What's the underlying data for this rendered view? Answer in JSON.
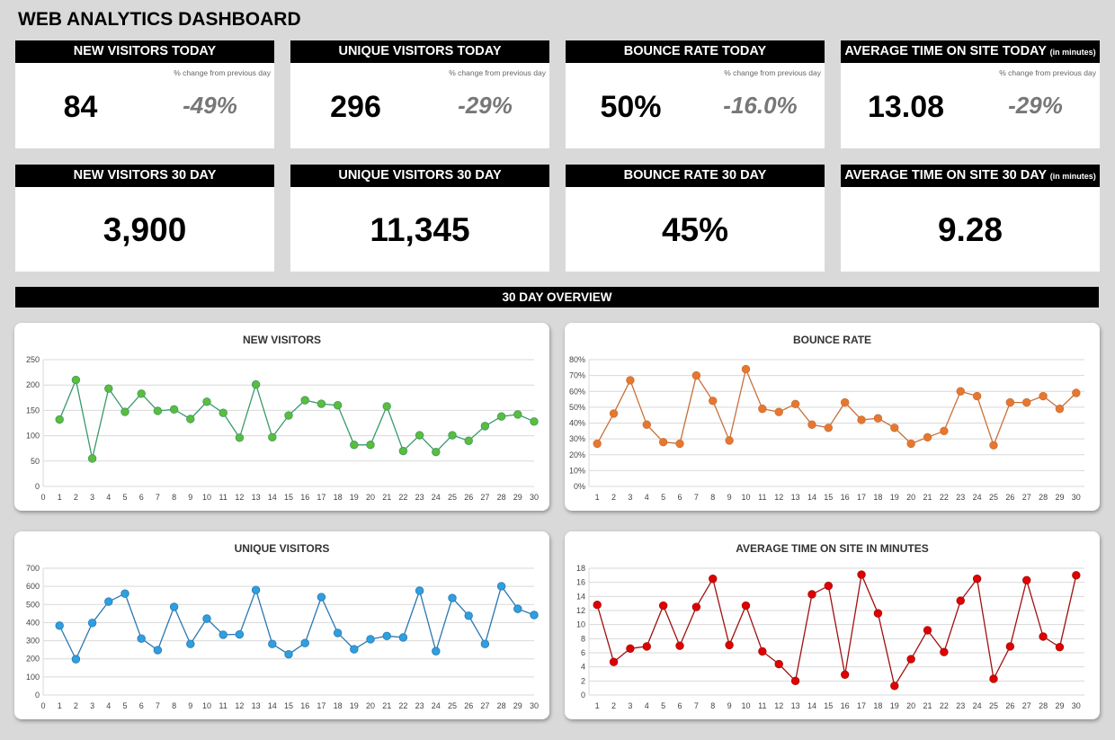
{
  "title": "WEB ANALYTICS DASHBOARD",
  "today": [
    {
      "label": "NEW VISITORS TODAY",
      "unit": "",
      "value": "84",
      "change": "-49%",
      "change_caption": "% change from previous day"
    },
    {
      "label": "UNIQUE VISITORS TODAY",
      "unit": "",
      "value": "296",
      "change": "-29%",
      "change_caption": "% change from previous day"
    },
    {
      "label": "BOUNCE RATE TODAY",
      "unit": "",
      "value": "50%",
      "change": "-16.0%",
      "change_caption": "% change from previous day"
    },
    {
      "label": "AVERAGE TIME ON SITE TODAY",
      "unit": "(in minutes)",
      "value": "13.08",
      "change": "-29%",
      "change_caption": "% change from previous day"
    }
  ],
  "thirty": [
    {
      "label": "NEW VISITORS 30 DAY",
      "unit": "",
      "value": "3,900"
    },
    {
      "label": "UNIQUE VISITORS 30 DAY",
      "unit": "",
      "value": "11,345"
    },
    {
      "label": "BOUNCE RATE 30 DAY",
      "unit": "",
      "value": "45%"
    },
    {
      "label": "AVERAGE TIME ON SITE 30 DAY",
      "unit": "(in minutes)",
      "value": "9.28"
    }
  ],
  "overview_title": "30 DAY OVERVIEW",
  "chart_data": [
    {
      "type": "line",
      "title": "NEW VISITORS",
      "color": "#5bbd3a",
      "line_color": "#3a9a6a",
      "xmode": "value",
      "xlim": [
        0,
        30
      ],
      "ylim": [
        0,
        250
      ],
      "ystep": 50,
      "yformat": "num",
      "x": [
        1,
        2,
        3,
        4,
        5,
        6,
        7,
        8,
        9,
        10,
        11,
        12,
        13,
        14,
        15,
        16,
        17,
        18,
        19,
        20,
        21,
        22,
        23,
        24,
        25,
        26,
        27,
        28,
        29,
        30
      ],
      "values": [
        132,
        210,
        55,
        193,
        147,
        183,
        149,
        152,
        133,
        167,
        145,
        96,
        201,
        97,
        140,
        170,
        163,
        160,
        82,
        82,
        158,
        70,
        101,
        68,
        101,
        90,
        119,
        138,
        142,
        128
      ]
    },
    {
      "type": "line",
      "title": "BOUNCE RATE",
      "color": "#e8772e",
      "line_color": "#c8703a",
      "xmode": "category",
      "xlim": [
        1,
        30
      ],
      "ylim": [
        0,
        80
      ],
      "ystep": 10,
      "yformat": "pct",
      "x": [
        1,
        2,
        3,
        4,
        5,
        6,
        7,
        8,
        9,
        10,
        11,
        12,
        13,
        14,
        15,
        16,
        17,
        18,
        19,
        20,
        21,
        22,
        23,
        24,
        25,
        26,
        27,
        28,
        29,
        30
      ],
      "values": [
        27,
        46,
        67,
        39,
        28,
        27,
        70,
        54,
        29,
        74,
        49,
        47,
        52,
        39,
        37,
        53,
        42,
        43,
        37,
        27,
        31,
        35,
        60,
        57,
        26,
        53,
        53,
        57,
        49,
        59
      ]
    },
    {
      "type": "line",
      "title": "UNIQUE VISITORS",
      "color": "#2e9fe0",
      "line_color": "#2a78b0",
      "xmode": "value",
      "xlim": [
        0,
        30
      ],
      "ylim": [
        0,
        700
      ],
      "ystep": 100,
      "yformat": "num",
      "x": [
        1,
        2,
        3,
        4,
        5,
        6,
        7,
        8,
        9,
        10,
        11,
        12,
        13,
        14,
        15,
        16,
        17,
        18,
        19,
        20,
        21,
        22,
        23,
        24,
        25,
        26,
        27,
        28,
        29,
        30
      ],
      "values": [
        383,
        198,
        398,
        516,
        560,
        312,
        248,
        487,
        282,
        422,
        333,
        335,
        580,
        282,
        225,
        287,
        541,
        343,
        253,
        308,
        326,
        318,
        576,
        242,
        536,
        438,
        282,
        601,
        476,
        442
      ]
    },
    {
      "type": "line",
      "title": "AVERAGE TIME ON SITE IN MINUTES",
      "color": "#e00000",
      "line_color": "#a01010",
      "xmode": "category",
      "xlim": [
        1,
        30
      ],
      "ylim": [
        0,
        18
      ],
      "ystep": 2,
      "yformat": "num",
      "x": [
        1,
        2,
        3,
        4,
        5,
        6,
        7,
        8,
        9,
        10,
        11,
        12,
        13,
        14,
        15,
        16,
        17,
        18,
        19,
        20,
        21,
        22,
        23,
        24,
        25,
        26,
        27,
        28,
        29,
        30
      ],
      "values": [
        12.8,
        4.7,
        6.6,
        6.9,
        12.7,
        7.0,
        12.5,
        16.5,
        7.1,
        12.7,
        6.2,
        4.4,
        2.0,
        14.3,
        15.5,
        2.9,
        17.1,
        11.6,
        1.3,
        5.1,
        9.2,
        6.1,
        13.4,
        16.5,
        2.3,
        6.9,
        16.3,
        8.3,
        6.8,
        17.0
      ]
    }
  ]
}
